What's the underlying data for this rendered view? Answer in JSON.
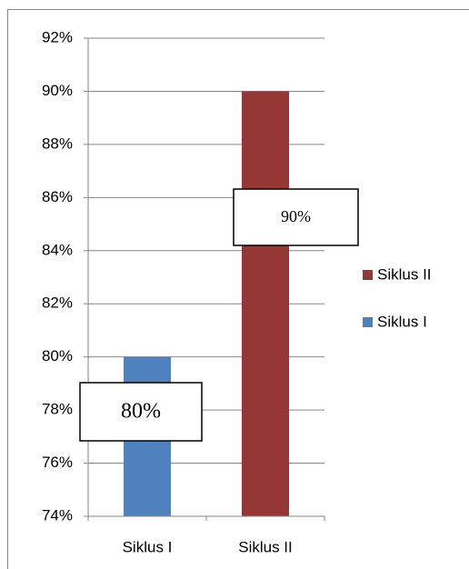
{
  "chart_data": {
    "type": "bar",
    "categories": [
      "Siklus I",
      "Siklus II"
    ],
    "values": [
      80,
      90
    ],
    "value_labels": [
      "80%",
      "90%"
    ],
    "colors": [
      "#4f81bd",
      "#953735"
    ],
    "ylim": [
      74,
      92
    ],
    "yticks": [
      {
        "value": 74,
        "label": "74%"
      },
      {
        "value": 76,
        "label": "76%"
      },
      {
        "value": 78,
        "label": "78%"
      },
      {
        "value": 80,
        "label": "80%"
      },
      {
        "value": 82,
        "label": "82%"
      },
      {
        "value": 84,
        "label": "84%"
      },
      {
        "value": 86,
        "label": "86%"
      },
      {
        "value": 88,
        "label": "88%"
      },
      {
        "value": 90,
        "label": "90%"
      },
      {
        "value": 92,
        "label": "92%"
      }
    ],
    "grid": true,
    "legend": "right"
  }
}
